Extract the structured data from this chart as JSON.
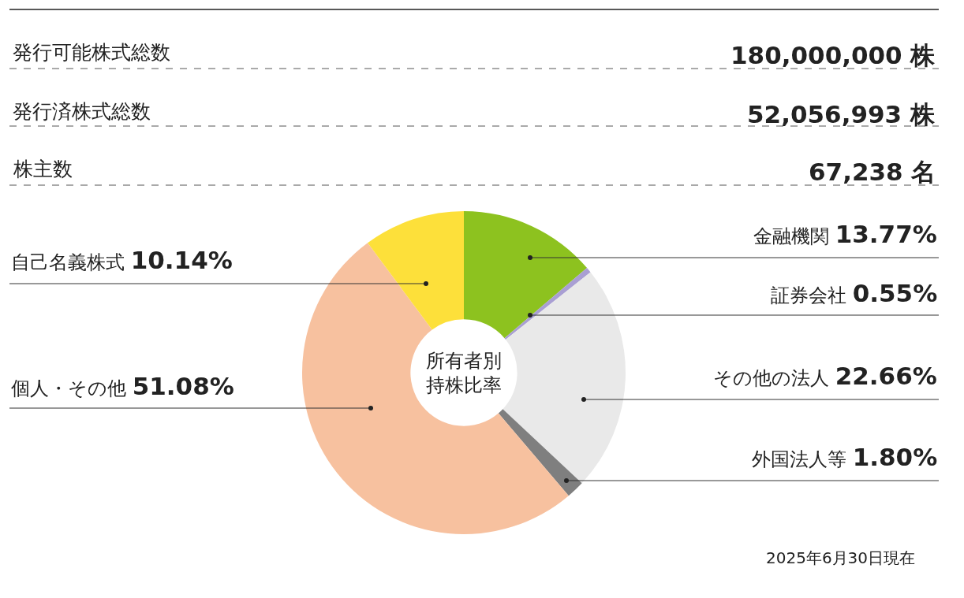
{
  "chart_data": {
    "type": "donut",
    "title": "所有者別持株比率",
    "categories": [
      "金融機関",
      "証券会社",
      "その他の法人",
      "外国法人等",
      "個人・その他",
      "自己名義株式"
    ],
    "values": [
      13.77,
      0.55,
      22.66,
      1.8,
      51.08,
      10.14
    ],
    "value_labels": [
      "13.77%",
      "0.55%",
      "22.66%",
      "1.80%",
      "51.08%",
      "10.14%"
    ],
    "colors": [
      "#8dc21f",
      "#a99fd3",
      "#e9e9e9",
      "#7f7f7f",
      "#f7c19f",
      "#fde03a"
    ],
    "legend": false,
    "annotations": [
      "発行可能株式総数",
      "180,000,000 株",
      "発行済株式総数",
      "52,056,993 株",
      "株主数",
      "67,238 名",
      "2025年6月30日現在"
    ]
  }
}
